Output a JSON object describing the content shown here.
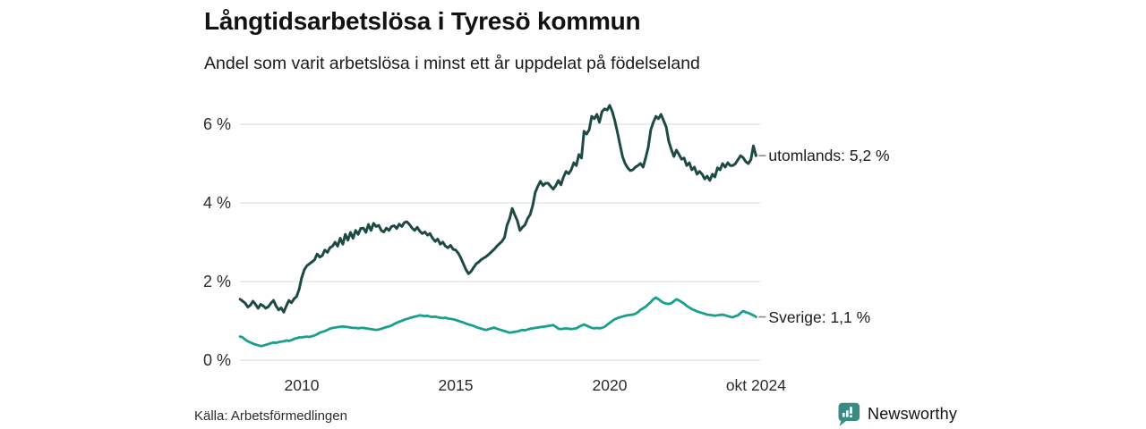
{
  "header": {
    "title": "Långtidsarbetslösa i Tyresö kommun",
    "subtitle": "Andel som varit arbetslösa i minst ett år uppdelat på födelseland"
  },
  "footer": {
    "source": "Källa: Arbetsförmedlingen",
    "brand": "Newsworthy"
  },
  "colors": {
    "utomlands_line": "#1d4a43",
    "sverige_line": "#18a08c",
    "grid": "#e6e6e6",
    "label_dash": "#8a8a8a",
    "tick_text": "#2b2b2b",
    "brand_teal": "#35837e",
    "title_text": "#121212"
  },
  "chart_data": {
    "type": "line",
    "title": "Långtidsarbetslösa i Tyresö kommun",
    "subtitle": "Andel som varit arbetslösa i minst ett år uppdelat på födelseland",
    "unit": "%",
    "grid": "horizontal-only",
    "legend": "end-of-line-labels",
    "start_year": 2008,
    "points_per_year": 12,
    "end_label": "okt 2024",
    "ylim": [
      0,
      6.6
    ],
    "y_ticks": [
      {
        "value": 0,
        "label": "0 %"
      },
      {
        "value": 2,
        "label": "2 %"
      },
      {
        "value": 4,
        "label": "4 %"
      },
      {
        "value": 6,
        "label": "6 %"
      }
    ],
    "x_ticks": [
      {
        "year": 2010,
        "label": "2010"
      },
      {
        "year": 2015,
        "label": "2015"
      },
      {
        "year": 2020,
        "label": "2020"
      },
      {
        "year": 2024.75,
        "label": "okt 2024"
      }
    ],
    "series": [
      {
        "name": "utomlands",
        "label": "utomlands: 5,2 %",
        "last_value": 5.2,
        "color": "#1d4a43",
        "stroke_width": 3,
        "values": [
          1.55,
          1.5,
          1.45,
          1.35,
          1.4,
          1.5,
          1.42,
          1.32,
          1.42,
          1.38,
          1.32,
          1.36,
          1.45,
          1.52,
          1.38,
          1.28,
          1.33,
          1.22,
          1.38,
          1.52,
          1.46,
          1.56,
          1.62,
          1.8,
          2.1,
          2.3,
          2.4,
          2.45,
          2.5,
          2.55,
          2.7,
          2.62,
          2.66,
          2.8,
          2.74,
          2.86,
          2.9,
          3.0,
          2.9,
          3.1,
          2.95,
          3.2,
          3.05,
          3.25,
          3.1,
          3.3,
          3.2,
          3.35,
          3.36,
          3.25,
          3.45,
          3.3,
          3.48,
          3.4,
          3.43,
          3.3,
          3.26,
          3.36,
          3.3,
          3.4,
          3.42,
          3.35,
          3.46,
          3.4,
          3.5,
          3.52,
          3.45,
          3.36,
          3.3,
          3.38,
          3.28,
          3.22,
          3.26,
          3.18,
          3.22,
          3.1,
          3.02,
          3.08,
          2.95,
          3.0,
          2.9,
          2.86,
          2.92,
          2.82,
          2.8,
          2.72,
          2.6,
          2.45,
          2.3,
          2.2,
          2.26,
          2.36,
          2.45,
          2.5,
          2.56,
          2.6,
          2.64,
          2.7,
          2.76,
          2.82,
          2.9,
          2.96,
          3.02,
          3.12,
          3.43,
          3.6,
          3.86,
          3.7,
          3.55,
          3.3,
          3.38,
          3.44,
          3.6,
          3.7,
          3.93,
          4.27,
          4.42,
          4.55,
          4.44,
          4.5,
          4.5,
          4.42,
          4.35,
          4.44,
          4.57,
          4.46,
          4.66,
          4.8,
          4.74,
          4.84,
          5.02,
          4.95,
          5.23,
          5.14,
          5.82,
          5.75,
          5.86,
          6.2,
          6.14,
          6.25,
          6.05,
          6.32,
          6.39,
          6.36,
          6.48,
          6.32,
          6.09,
          5.8,
          5.48,
          5.18,
          5.0,
          4.89,
          4.82,
          4.84,
          4.91,
          4.95,
          5.0,
          4.91,
          5.14,
          5.41,
          5.86,
          6.05,
          6.2,
          6.14,
          6.25,
          6.09,
          5.93,
          5.57,
          5.36,
          5.18,
          5.34,
          5.23,
          5.11,
          5.14,
          4.95,
          5.02,
          4.84,
          4.91,
          4.73,
          4.8,
          4.73,
          4.61,
          4.68,
          4.57,
          4.73,
          4.66,
          4.89,
          4.84,
          5.0,
          4.91,
          5.02,
          4.95,
          4.95,
          5.0,
          5.1,
          5.2,
          5.15,
          5.05,
          5.0,
          5.1,
          5.45,
          5.2
        ]
      },
      {
        "name": "Sverige",
        "label": "Sverige: 1,1 %",
        "last_value": 1.1,
        "color": "#18a08c",
        "stroke_width": 2.8,
        "values": [
          0.6,
          0.58,
          0.52,
          0.48,
          0.45,
          0.42,
          0.4,
          0.38,
          0.36,
          0.37,
          0.39,
          0.41,
          0.43,
          0.45,
          0.44,
          0.46,
          0.47,
          0.48,
          0.5,
          0.49,
          0.51,
          0.54,
          0.56,
          0.58,
          0.58,
          0.59,
          0.6,
          0.59,
          0.61,
          0.63,
          0.66,
          0.7,
          0.72,
          0.74,
          0.77,
          0.8,
          0.82,
          0.83,
          0.84,
          0.85,
          0.86,
          0.85,
          0.84,
          0.83,
          0.82,
          0.82,
          0.81,
          0.82,
          0.82,
          0.81,
          0.8,
          0.79,
          0.78,
          0.77,
          0.78,
          0.8,
          0.82,
          0.84,
          0.86,
          0.88,
          0.92,
          0.95,
          0.98,
          1.0,
          1.03,
          1.05,
          1.07,
          1.09,
          1.11,
          1.12,
          1.14,
          1.13,
          1.12,
          1.13,
          1.11,
          1.1,
          1.11,
          1.09,
          1.08,
          1.07,
          1.08,
          1.06,
          1.05,
          1.04,
          1.02,
          1.0,
          0.98,
          0.96,
          0.93,
          0.91,
          0.89,
          0.87,
          0.84,
          0.82,
          0.8,
          0.78,
          0.77,
          0.79,
          0.81,
          0.83,
          0.8,
          0.78,
          0.76,
          0.74,
          0.72,
          0.7,
          0.71,
          0.72,
          0.73,
          0.75,
          0.77,
          0.76,
          0.78,
          0.8,
          0.81,
          0.82,
          0.83,
          0.84,
          0.85,
          0.86,
          0.87,
          0.88,
          0.89,
          0.85,
          0.8,
          0.79,
          0.8,
          0.81,
          0.8,
          0.79,
          0.8,
          0.81,
          0.85,
          0.88,
          0.91,
          0.88,
          0.85,
          0.82,
          0.81,
          0.82,
          0.81,
          0.82,
          0.85,
          0.9,
          0.95,
          1.0,
          1.04,
          1.07,
          1.09,
          1.11,
          1.13,
          1.14,
          1.15,
          1.16,
          1.18,
          1.22,
          1.28,
          1.32,
          1.36,
          1.42,
          1.48,
          1.55,
          1.59,
          1.55,
          1.5,
          1.46,
          1.44,
          1.43,
          1.45,
          1.5,
          1.55,
          1.52,
          1.48,
          1.44,
          1.38,
          1.34,
          1.3,
          1.27,
          1.24,
          1.22,
          1.2,
          1.18,
          1.16,
          1.15,
          1.14,
          1.13,
          1.14,
          1.15,
          1.16,
          1.14,
          1.12,
          1.1,
          1.09,
          1.12,
          1.14,
          1.2,
          1.25,
          1.22,
          1.2,
          1.17,
          1.14,
          1.1
        ]
      }
    ]
  }
}
